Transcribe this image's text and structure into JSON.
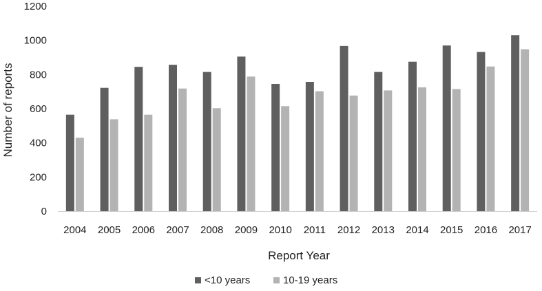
{
  "chart_data": {
    "type": "bar",
    "title": "",
    "xlabel": "Report Year",
    "ylabel": "Number of reports",
    "ylim": [
      0,
      1200
    ],
    "yticks": [
      0,
      200,
      400,
      600,
      800,
      1000,
      1200
    ],
    "grid": false,
    "legend": "bottom",
    "categories": [
      "2004",
      "2005",
      "2006",
      "2007",
      "2008",
      "2009",
      "2010",
      "2011",
      "2012",
      "2013",
      "2014",
      "2015",
      "2016",
      "2017"
    ],
    "series": [
      {
        "name": "<10 years",
        "color": "#5f5f5f",
        "values": [
          565,
          722,
          845,
          857,
          815,
          905,
          745,
          757,
          967,
          815,
          875,
          970,
          932,
          1030
        ]
      },
      {
        "name": "10-19 years",
        "color": "#b3b3b3",
        "values": [
          430,
          538,
          565,
          718,
          603,
          788,
          615,
          702,
          677,
          707,
          725,
          715,
          847,
          948
        ]
      }
    ]
  }
}
